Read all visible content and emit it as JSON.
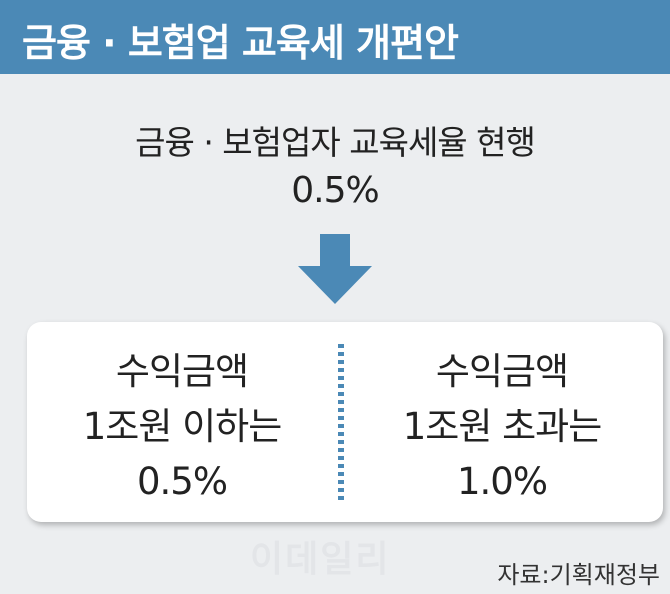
{
  "header": {
    "title": "금융 · 보험업 교육세 개편안"
  },
  "current": {
    "label": "금융 · 보험업자 교육세율 현행",
    "rate": "0.5%"
  },
  "proposal": [
    {
      "lines": [
        "수익금액",
        "1조원 이하는",
        "0.5%"
      ]
    },
    {
      "lines": [
        "수익금액",
        "1조원 초과는",
        "1.0%"
      ]
    }
  ],
  "watermark": "이데일리",
  "source": "자료:기획재정부"
}
